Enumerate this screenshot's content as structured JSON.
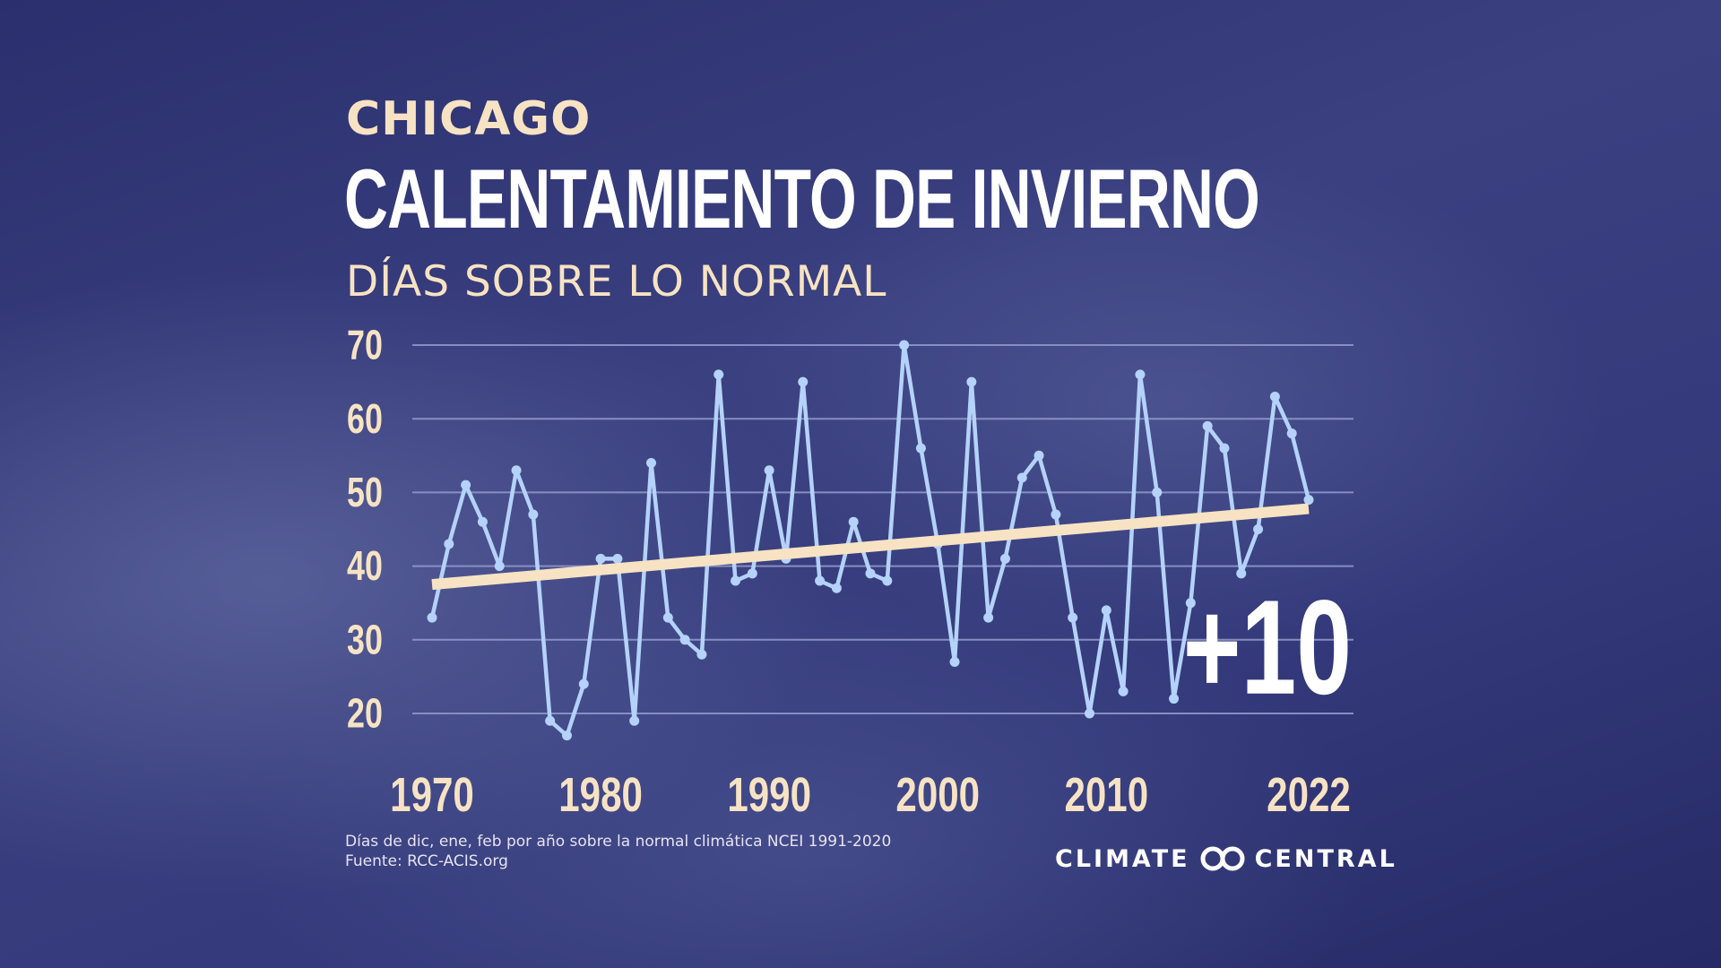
{
  "header": {
    "city": "CHICAGO",
    "title": "CALENTAMIENTO DE INVIERNO",
    "subtitle": "DÍAS SOBRE LO NORMAL"
  },
  "chart_data": {
    "type": "line",
    "ylim": [
      20,
      70
    ],
    "yticks": [
      "70",
      "60",
      "50",
      "40",
      "30",
      "20"
    ],
    "xticks": [
      "1970",
      "1980",
      "1990",
      "2000",
      "2010",
      "2022"
    ],
    "x": [
      1970,
      1971,
      1972,
      1973,
      1974,
      1975,
      1976,
      1977,
      1978,
      1979,
      1980,
      1981,
      1982,
      1983,
      1984,
      1985,
      1986,
      1987,
      1988,
      1989,
      1990,
      1991,
      1992,
      1993,
      1994,
      1995,
      1996,
      1997,
      1998,
      1999,
      2000,
      2001,
      2002,
      2003,
      2004,
      2005,
      2006,
      2007,
      2008,
      2009,
      2010,
      2011,
      2012,
      2013,
      2014,
      2015,
      2016,
      2017,
      2018,
      2019,
      2020,
      2021,
      2022
    ],
    "series": [
      {
        "values": [
          33,
          43,
          51,
          46,
          40,
          53,
          47,
          19,
          17,
          24,
          41,
          41,
          19,
          54,
          33,
          30,
          28,
          66,
          38,
          39,
          53,
          41,
          65,
          38,
          37,
          46,
          39,
          38,
          70,
          56,
          43,
          27,
          65,
          33,
          41,
          52,
          55,
          47,
          33,
          20,
          34,
          23,
          66,
          50,
          22,
          35,
          59,
          56,
          39,
          45,
          63,
          58,
          49
        ],
        "color": "#b4d2fa"
      }
    ],
    "trend": {
      "start": 37.5,
      "end": 47.8,
      "color": "#f7e3c3"
    },
    "annotation": "+10",
    "grid": true
  },
  "footer": {
    "note_line1": "Días de dic, ene, feb por año sobre la normal climática NCEI 1991-2020",
    "note_line2": "Fuente: RCC-ACIS.org",
    "brand_left": "CLIMATE",
    "brand_right": "CENTRAL"
  },
  "colors": {
    "accent": "#f7e3c3",
    "line": "#b4d2fa",
    "grid": "#8f97c9"
  }
}
